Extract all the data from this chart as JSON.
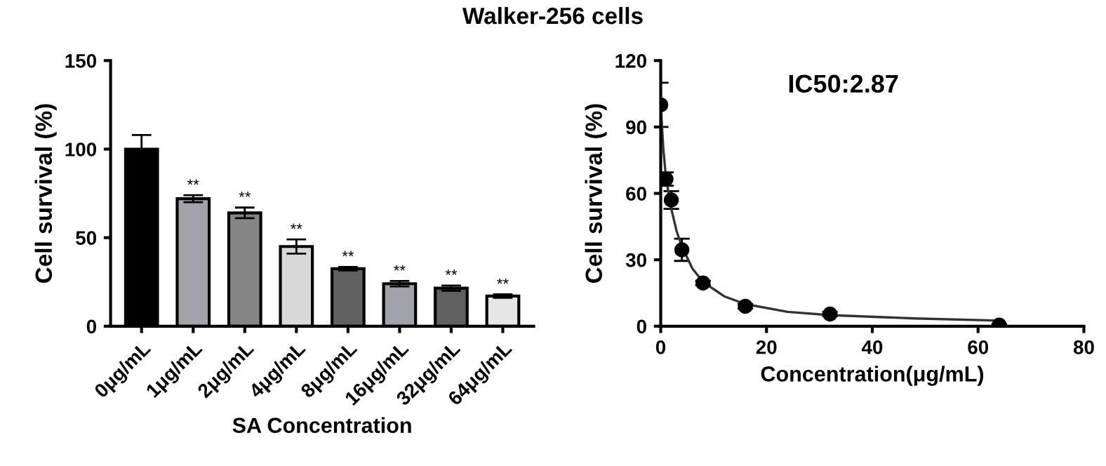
{
  "chart_data": [
    {
      "type": "bar",
      "title": "Walker-256 cells",
      "xlabel": "SA Concentration",
      "ylabel": "Cell survival (%)",
      "categories": [
        "0μg/mL",
        "1μg/mL",
        "2μg/mL",
        "4μg/mL",
        "8μg/mL",
        "16μg/mL",
        "32μg/mL",
        "64μg/mL"
      ],
      "values": [
        100,
        72,
        64,
        45,
        32.5,
        24,
        21.5,
        17
      ],
      "errors": [
        8,
        2,
        3,
        4,
        1,
        1.5,
        1.5,
        1
      ],
      "colors": [
        "#000000",
        "#a2a2aa",
        "#858585",
        "#d8d8d8",
        "#606060",
        "#a2a2aa",
        "#606060",
        "#e6e6e6"
      ],
      "ylim": [
        0,
        150
      ],
      "yticks": [
        0,
        50,
        100,
        150
      ],
      "grid": false,
      "annotations": [
        {
          "text": "**",
          "x": "1μg/mL",
          "y": 74
        },
        {
          "text": "**",
          "x": "2μg/mL",
          "y": 67
        },
        {
          "text": "**",
          "x": "4μg/mL",
          "y": 49
        },
        {
          "text": "**",
          "x": "8μg/mL",
          "y": 33.5
        },
        {
          "text": "**",
          "x": "16μg/mL",
          "y": 25.5
        },
        {
          "text": "**",
          "x": "32μg/mL",
          "y": 23
        },
        {
          "text": "**",
          "x": "64μg/mL",
          "y": 18
        }
      ]
    },
    {
      "type": "scatter",
      "xlabel": "Concentration(μg/mL)",
      "ylabel": "Cell survival (%)",
      "series": [
        {
          "type": "scatter",
          "color": "#000000",
          "marker": "circle",
          "x": [
            0,
            1,
            2,
            4,
            8,
            16,
            32,
            64
          ],
          "values": [
            100,
            66.5,
            57,
            34.5,
            19.5,
            9,
            5.5,
            0.5
          ],
          "errors": [
            10,
            3,
            4,
            5,
            1,
            1,
            1,
            0.5
          ]
        },
        {
          "type": "line",
          "color": "#333333",
          "marker": "none",
          "x": [
            0,
            0.5,
            1,
            2,
            3,
            4,
            6,
            8,
            12,
            16,
            24,
            32,
            48,
            64
          ],
          "values": [
            100,
            80,
            67,
            53,
            43,
            36,
            26,
            20,
            13.5,
            10,
            6.5,
            5,
            3.5,
            2.5
          ]
        }
      ],
      "xlim": [
        0,
        80
      ],
      "xticks": [
        0,
        20,
        40,
        60,
        80
      ],
      "ylim": [
        0,
        120
      ],
      "yticks": [
        0,
        30,
        60,
        90,
        120
      ],
      "grid": false,
      "annotations": [
        "IC50:2.87"
      ]
    }
  ]
}
